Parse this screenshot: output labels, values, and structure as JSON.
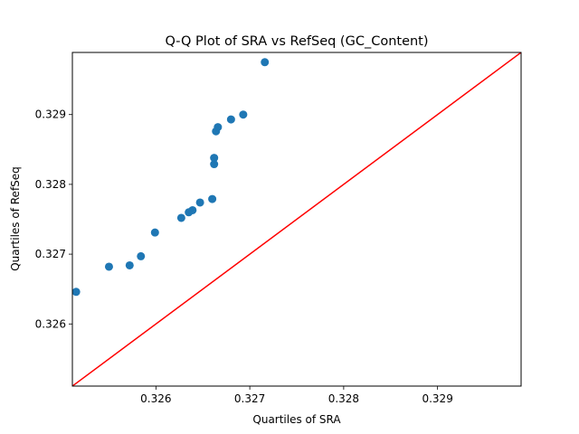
{
  "chart_data": {
    "type": "scatter",
    "title": "Q-Q Plot of SRA vs RefSeq (GC_Content)",
    "xlabel": "Quartiles of SRA",
    "ylabel": "Quartiles of RefSeq",
    "xlim": [
      0.32511,
      0.32989
    ],
    "ylim": [
      0.32511,
      0.32989
    ],
    "xticks": [
      0.326,
      0.327,
      0.328,
      0.329
    ],
    "yticks": [
      0.326,
      0.327,
      0.328,
      0.329
    ],
    "xtick_labels": [
      "0.326",
      "0.327",
      "0.328",
      "0.329"
    ],
    "ytick_labels": [
      "0.326",
      "0.327",
      "0.328",
      "0.329"
    ],
    "grid": false,
    "point_color": "#1f77b4",
    "reference_line": {
      "color": "#ff0000",
      "from": [
        0.32511,
        0.32511
      ],
      "to": [
        0.32989,
        0.32989
      ]
    },
    "points": [
      {
        "x": 0.32515,
        "y": 0.32646
      },
      {
        "x": 0.3255,
        "y": 0.32682
      },
      {
        "x": 0.32572,
        "y": 0.32684
      },
      {
        "x": 0.32584,
        "y": 0.32697
      },
      {
        "x": 0.32599,
        "y": 0.32731
      },
      {
        "x": 0.32627,
        "y": 0.32752
      },
      {
        "x": 0.32635,
        "y": 0.3276
      },
      {
        "x": 0.32639,
        "y": 0.32763
      },
      {
        "x": 0.32647,
        "y": 0.32774
      },
      {
        "x": 0.3266,
        "y": 0.32779
      },
      {
        "x": 0.32662,
        "y": 0.32829
      },
      {
        "x": 0.32662,
        "y": 0.32838
      },
      {
        "x": 0.32664,
        "y": 0.32876
      },
      {
        "x": 0.32666,
        "y": 0.32882
      },
      {
        "x": 0.3268,
        "y": 0.32893
      },
      {
        "x": 0.32693,
        "y": 0.329
      },
      {
        "x": 0.32716,
        "y": 0.32975
      }
    ]
  }
}
